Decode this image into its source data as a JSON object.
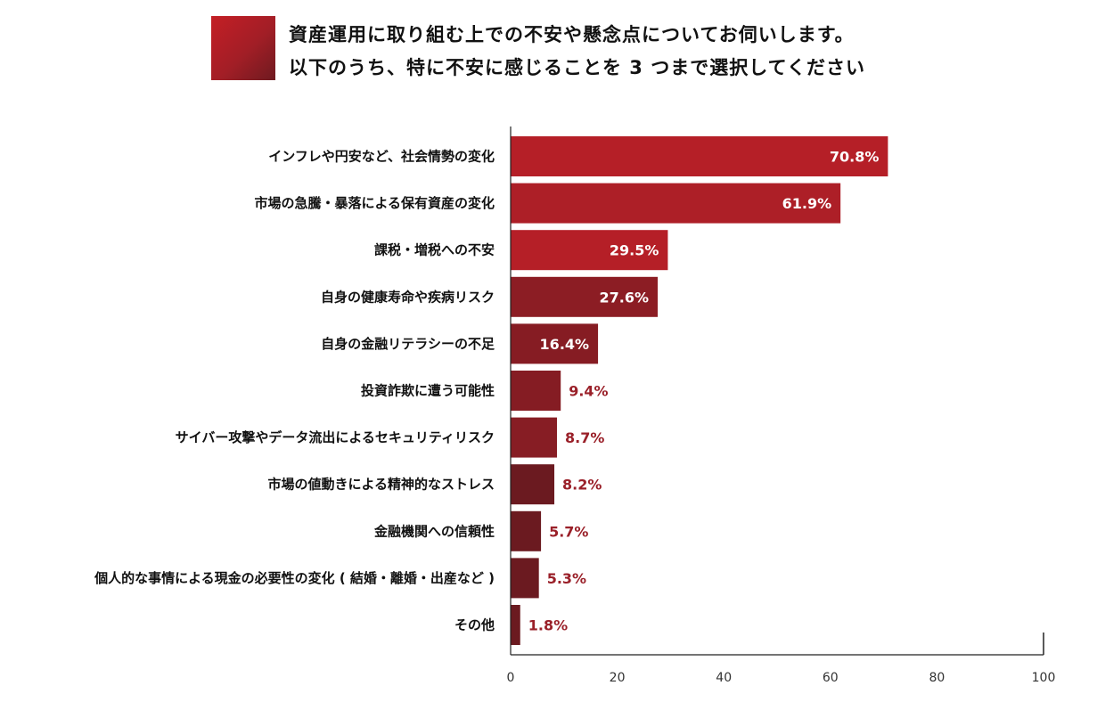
{
  "title": {
    "line1": "資産運用に取り組む上での不安や懸念点についてお伺いします。",
    "line2": "以下のうち、特に不安に感じることを 3 つまで選択してください"
  },
  "chart_data": {
    "type": "bar",
    "orientation": "horizontal",
    "categories": [
      "インフレや円安など、社会情勢の変化",
      "市場の急騰・暴落による保有資産の変化",
      "課税・増税への不安",
      "自身の健康寿命や疾病リスク",
      "自身の金融リテラシーの不足",
      "投資詐欺に遭う可能性",
      "サイバー攻撃やデータ流出によるセキュリティリスク",
      "市場の値動きによる精神的なストレス",
      "金融機関への信頼性",
      "個人的な事情による現金の必要性の変化 ( 結婚・離婚・出産など )",
      "その他"
    ],
    "values": [
      70.8,
      61.9,
      29.5,
      27.6,
      16.4,
      9.4,
      8.7,
      8.2,
      5.7,
      5.3,
      1.8
    ],
    "value_labels": [
      "70.8%",
      "61.9%",
      "29.5%",
      "27.6%",
      "16.4%",
      "9.4%",
      "8.7%",
      "8.2%",
      "5.7%",
      "5.3%",
      "1.8%"
    ],
    "bar_colors": [
      "#b51f27",
      "#ad1f27",
      "#b51f27",
      "#8c1d24",
      "#861c23",
      "#851c23",
      "#871d24",
      "#6b1a20",
      "#6b1a20",
      "#6b1a20",
      "#6b1a20"
    ],
    "label_color_inside": "#ffffff",
    "label_color_outside": "#9a2029",
    "xlim": [
      0,
      100
    ],
    "x_ticks": [
      0,
      20,
      40,
      60,
      80,
      100
    ],
    "x_tick_labels": [
      "0",
      "20",
      "40",
      "60",
      "80",
      "100"
    ],
    "grid": false,
    "legend": "none"
  }
}
